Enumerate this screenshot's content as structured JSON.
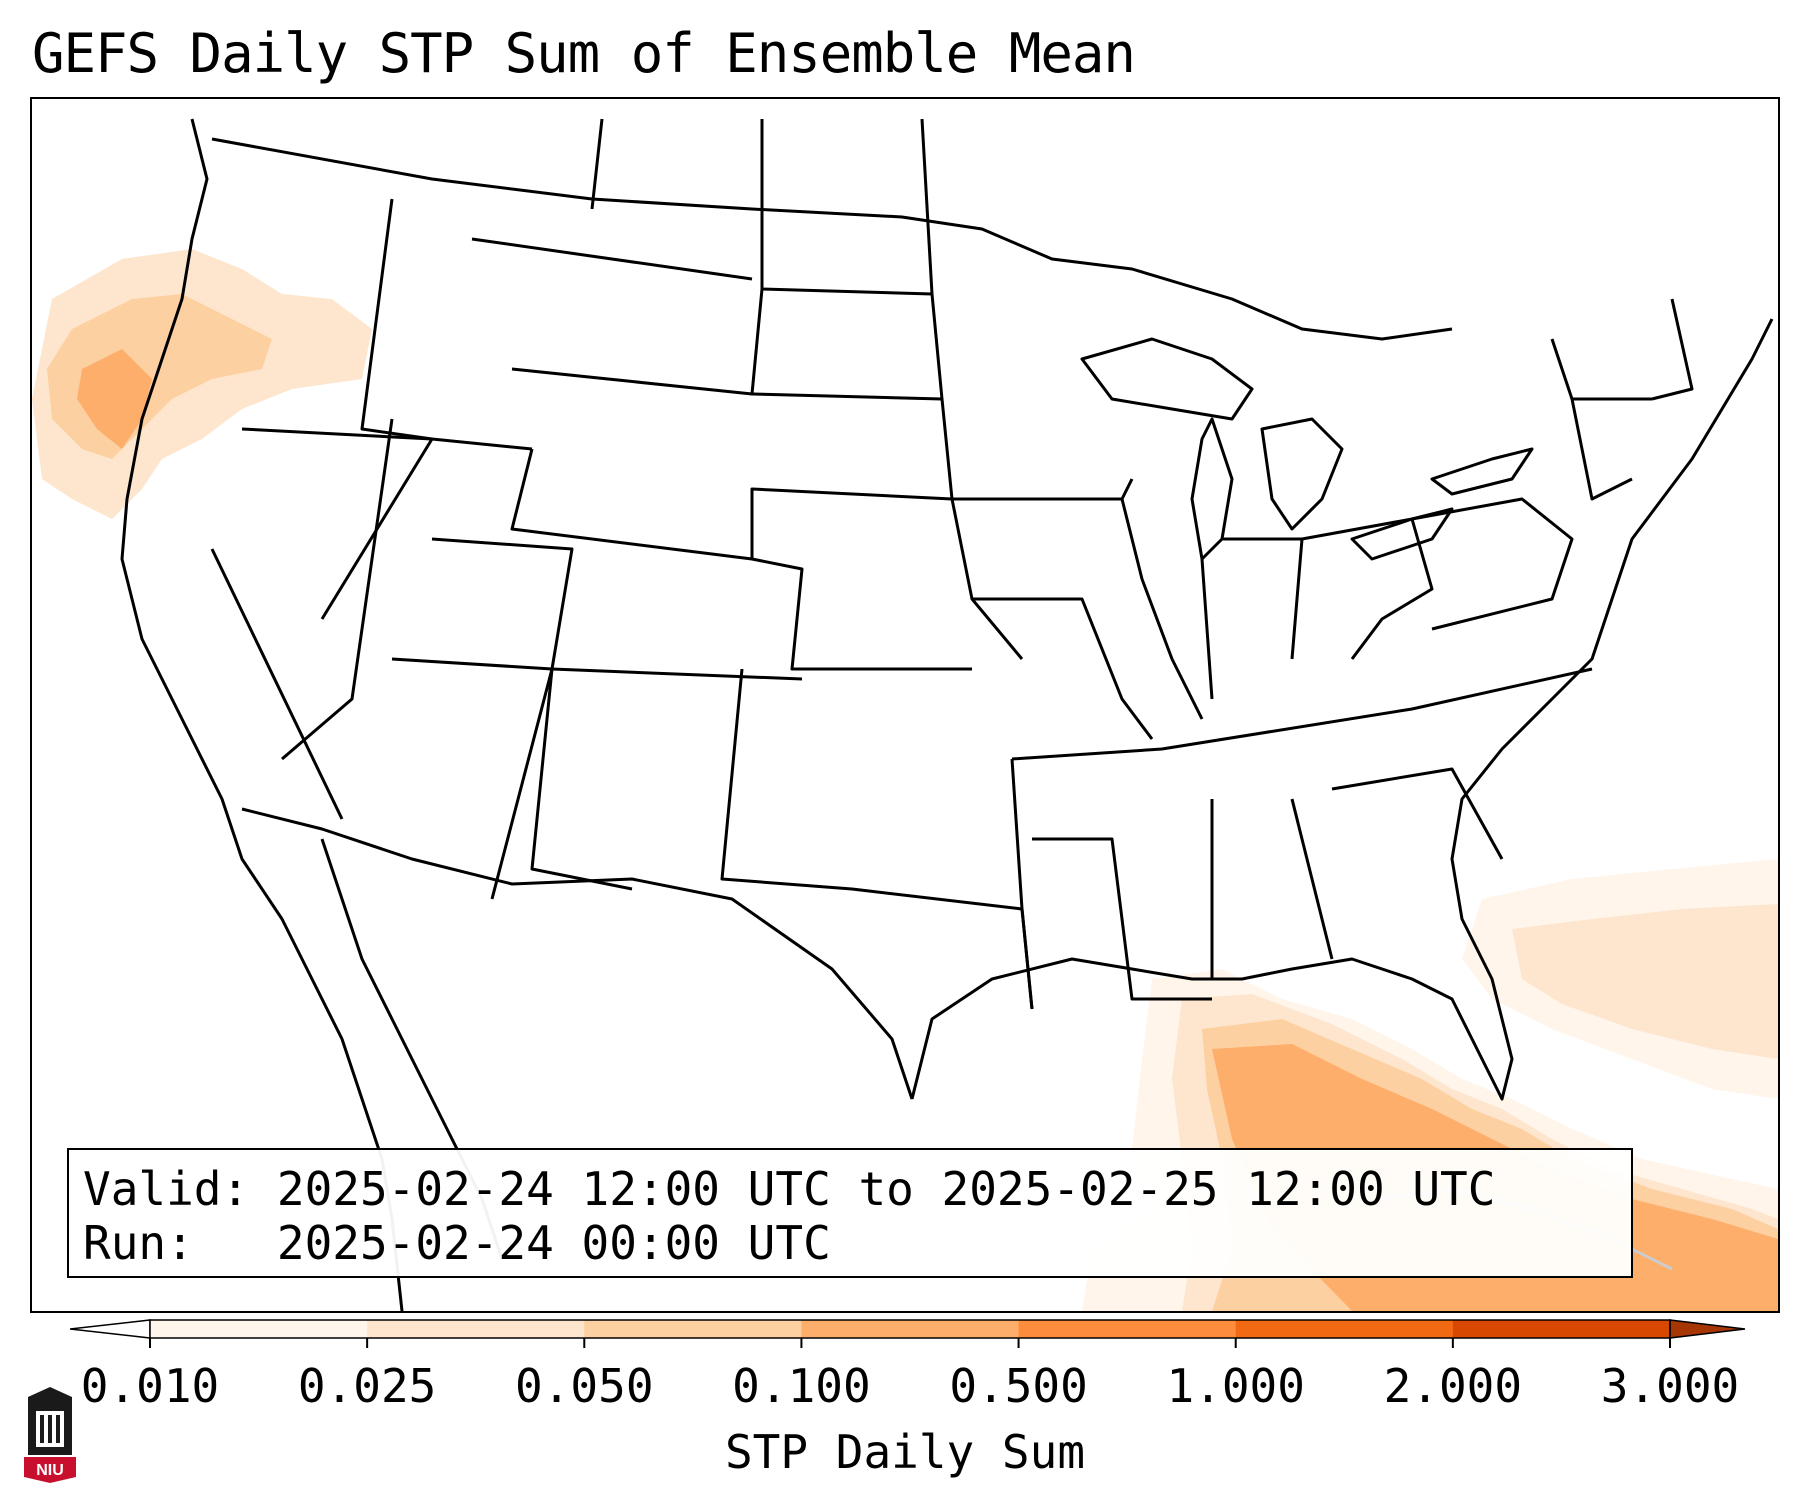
{
  "title": "GEFS Daily STP Sum of Ensemble Mean",
  "info": {
    "valid_label": "Valid:",
    "valid_value": "2025-02-24 12:00 UTC to 2025-02-25 12:00 UTC",
    "run_label": "Run:",
    "run_value": "2025-02-24 00:00 UTC"
  },
  "colorbar": {
    "label": "STP Daily Sum",
    "ticks": [
      "0.010",
      "0.025",
      "0.050",
      "0.100",
      "0.500",
      "1.000",
      "2.000",
      "3.000"
    ],
    "colors": [
      "#fff5eb",
      "#fee6ce",
      "#fdd0a2",
      "#fdae6b",
      "#fd8d3c",
      "#f16913",
      "#d94801",
      "#a63603"
    ],
    "extend": "both"
  },
  "map": {
    "projection": "CONUS",
    "field": "STP Daily Sum",
    "shaded_regions": [
      "Pacific Northwest coast",
      "Gulf of Mexico and Florida",
      "Western Atlantic"
    ]
  },
  "logo": {
    "text": "NIU",
    "icon": "niu-logo-icon"
  },
  "colors": {
    "border": "#000000",
    "outline": "#000000"
  }
}
